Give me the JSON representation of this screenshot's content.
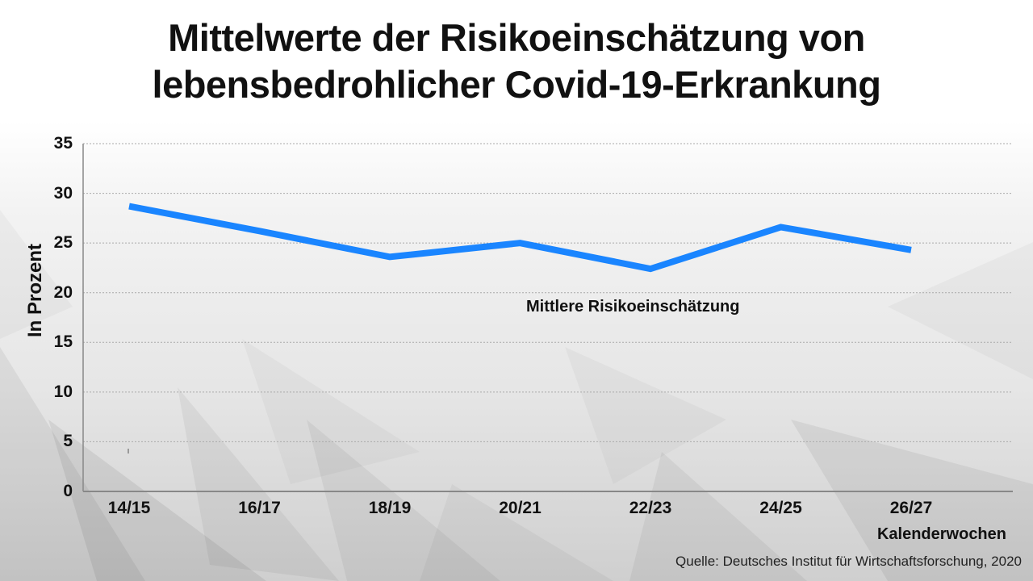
{
  "title": {
    "line1": "Mittelwerte der Risikoeinschätzung von",
    "line2": "lebensbedrohlicher Covid-19-Erkrankung"
  },
  "axes": {
    "ylabel": "In Prozent",
    "xlabel": "Kalenderwochen",
    "yticks": [
      "0",
      "5",
      "10",
      "15",
      "20",
      "25",
      "30",
      "35"
    ],
    "xticks": [
      "14/15",
      "16/17",
      "18/19",
      "20/21",
      "22/23",
      "24/25",
      "26/27"
    ]
  },
  "series_label": "Mittlere Risikoeinschätzung",
  "source": "Quelle: Deutsches Institut für Wirtschaftsforschung, 2020",
  "colors": {
    "line": "#1a85ff",
    "grid": "#aaaaaa",
    "axis": "#888888"
  },
  "chart_data": {
    "type": "line",
    "title": "Mittelwerte der Risikoeinschätzung von lebensbedrohlicher Covid-19-Erkrankung",
    "xlabel": "Kalenderwochen",
    "ylabel": "In Prozent",
    "categories": [
      "14/15",
      "16/17",
      "18/19",
      "20/21",
      "22/23",
      "24/25",
      "26/27"
    ],
    "series": [
      {
        "name": "Mittlere Risikoeinschätzung",
        "values": [
          28.7,
          26.2,
          23.6,
          25.0,
          22.4,
          26.6,
          24.3
        ]
      }
    ],
    "ylim": [
      0,
      35
    ],
    "yticks": [
      0,
      5,
      10,
      15,
      20,
      25,
      30,
      35
    ],
    "grid": "horizontal dotted",
    "legend": "inline label below line"
  }
}
